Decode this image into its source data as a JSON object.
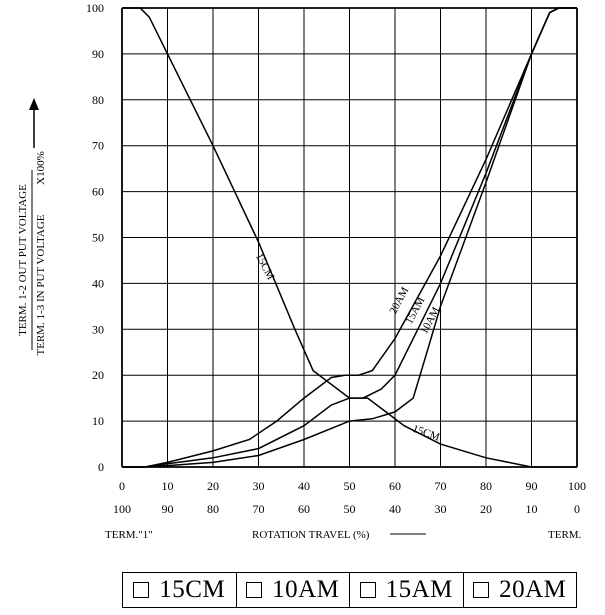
{
  "chart_data": {
    "type": "line",
    "ylabel_lines": [
      "TERM. 1-2 OUT PUT VOLTAGE",
      "TERM. 1-3 IN PUT VOLTAGE"
    ],
    "ylabel_suffix": "X100%",
    "xlabel": "ROTATION TRAVEL (%)",
    "x_left_label": "TERM.\"1\"",
    "x_right_label": "TERM.",
    "x_ticks_top": [
      "0",
      "10",
      "20",
      "30",
      "40",
      "50",
      "60",
      "70",
      "80",
      "90",
      "100"
    ],
    "x_ticks_bottom": [
      "100",
      "90",
      "80",
      "70",
      "60",
      "50",
      "40",
      "30",
      "20",
      "10",
      "0"
    ],
    "y_ticks": [
      "0",
      "10",
      "20",
      "30",
      "40",
      "50",
      "60",
      "70",
      "80",
      "90",
      "100"
    ],
    "xlim": [
      0,
      100
    ],
    "ylim": [
      0,
      100
    ],
    "grid": true,
    "series": [
      {
        "name": "15CM",
        "label": "15CM",
        "label2": "15CM",
        "points": [
          [
            0,
            100
          ],
          [
            4,
            100
          ],
          [
            6,
            98
          ],
          [
            10,
            90
          ],
          [
            20,
            70
          ],
          [
            30,
            49
          ],
          [
            38,
            30
          ],
          [
            42,
            21
          ],
          [
            46,
            18
          ],
          [
            50,
            15
          ],
          [
            54,
            15
          ],
          [
            58,
            12
          ],
          [
            62,
            9
          ],
          [
            70,
            5
          ],
          [
            80,
            2
          ],
          [
            90,
            0
          ],
          [
            100,
            0
          ]
        ]
      },
      {
        "name": "10AM",
        "label": "10AM",
        "points": [
          [
            0,
            0
          ],
          [
            5,
            0
          ],
          [
            10,
            0.3
          ],
          [
            20,
            1
          ],
          [
            30,
            2.5
          ],
          [
            40,
            6
          ],
          [
            50,
            10
          ],
          [
            55,
            10.5
          ],
          [
            60,
            12
          ],
          [
            64,
            15
          ],
          [
            67,
            25
          ],
          [
            70,
            35
          ],
          [
            80,
            62
          ],
          [
            90,
            90
          ],
          [
            94,
            99
          ],
          [
            96,
            100
          ],
          [
            100,
            100
          ]
        ]
      },
      {
        "name": "15AM",
        "label": "15AM",
        "points": [
          [
            0,
            0
          ],
          [
            5,
            0
          ],
          [
            10,
            0.7
          ],
          [
            20,
            2
          ],
          [
            30,
            4
          ],
          [
            40,
            9
          ],
          [
            46,
            13.5
          ],
          [
            50,
            15
          ],
          [
            53,
            15
          ],
          [
            57,
            17
          ],
          [
            60,
            20
          ],
          [
            65,
            30
          ],
          [
            70,
            40
          ],
          [
            80,
            64
          ],
          [
            90,
            90
          ],
          [
            94,
            99
          ],
          [
            96,
            100
          ],
          [
            100,
            100
          ]
        ]
      },
      {
        "name": "20AM",
        "label": "20AM",
        "points": [
          [
            0,
            0
          ],
          [
            5,
            0
          ],
          [
            10,
            1
          ],
          [
            20,
            3.5
          ],
          [
            28,
            6
          ],
          [
            34,
            10
          ],
          [
            40,
            15
          ],
          [
            46,
            19.5
          ],
          [
            49,
            20
          ],
          [
            52,
            20
          ],
          [
            55,
            21
          ],
          [
            60,
            28
          ],
          [
            70,
            46
          ],
          [
            80,
            67
          ],
          [
            90,
            90
          ],
          [
            94,
            99
          ],
          [
            96,
            100
          ],
          [
            100,
            100
          ]
        ]
      }
    ],
    "legend": {
      "placement": "bottom",
      "items": [
        "15CM",
        "10AM",
        "15AM",
        "20AM"
      ]
    }
  }
}
